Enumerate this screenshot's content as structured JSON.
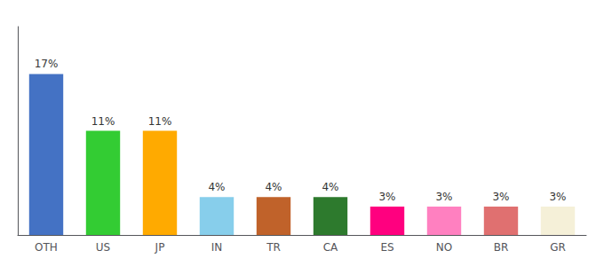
{
  "chart_data": {
    "type": "bar",
    "categories": [
      "OTH",
      "US",
      "JP",
      "IN",
      "TR",
      "CA",
      "ES",
      "NO",
      "BR",
      "GR"
    ],
    "values": [
      17,
      11,
      11,
      4,
      4,
      4,
      3,
      3,
      3,
      3
    ],
    "value_labels": [
      "17%",
      "11%",
      "11%",
      "4%",
      "4%",
      "4%",
      "3%",
      "3%",
      "3%",
      "3%"
    ],
    "colors": [
      "#4472c4",
      "#33cc33",
      "#ffaa00",
      "#87ceeb",
      "#c0622a",
      "#2d7a2d",
      "#ff007f",
      "#ff80c0",
      "#e07070",
      "#f5f0d8"
    ],
    "ylim": [
      0,
      22
    ],
    "data_labels": true,
    "tick_labels": "x",
    "grid": false
  }
}
